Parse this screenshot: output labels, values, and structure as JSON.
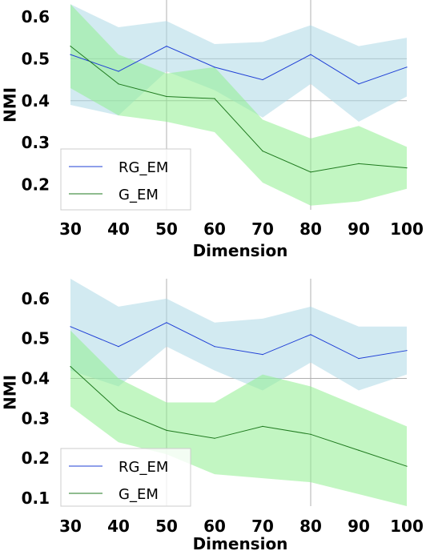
{
  "chart_data": [
    {
      "type": "line",
      "xlabel": "Dimension",
      "ylabel": "NMI",
      "x": [
        30,
        40,
        50,
        60,
        70,
        80,
        90,
        100
      ],
      "xticks": [
        "30",
        "40",
        "50",
        "60",
        "70",
        "80",
        "90",
        "100"
      ],
      "yticks": [
        "0.2",
        "0.3",
        "0.4",
        "0.5",
        "0.6"
      ],
      "yticks_values": [
        0.2,
        0.3,
        0.4,
        0.5,
        0.6
      ],
      "xlim": [
        30,
        100
      ],
      "ylim": [
        0.14,
        0.64
      ],
      "grid": true,
      "legend_position": "lower-left",
      "series": [
        {
          "name": "RG_EM",
          "color": "#1f3fd6",
          "band_color": "#add8e6",
          "values": [
            0.51,
            0.47,
            0.53,
            0.48,
            0.45,
            0.51,
            0.44,
            0.48
          ],
          "upper": [
            0.63,
            0.575,
            0.59,
            0.535,
            0.54,
            0.58,
            0.53,
            0.55
          ],
          "lower": [
            0.39,
            0.365,
            0.47,
            0.425,
            0.36,
            0.44,
            0.35,
            0.41
          ]
        },
        {
          "name": "G_EM",
          "color": "#1f7a1f",
          "band_color": "#90ee90",
          "values": [
            0.53,
            0.44,
            0.41,
            0.405,
            0.28,
            0.23,
            0.25,
            0.24
          ],
          "upper": [
            0.63,
            0.51,
            0.465,
            0.48,
            0.355,
            0.31,
            0.34,
            0.29
          ],
          "lower": [
            0.43,
            0.365,
            0.35,
            0.325,
            0.205,
            0.15,
            0.16,
            0.19
          ]
        }
      ]
    },
    {
      "type": "line",
      "xlabel": "Dimension",
      "ylabel": "NMI",
      "x": [
        30,
        40,
        50,
        60,
        70,
        80,
        90,
        100
      ],
      "xticks": [
        "30",
        "40",
        "50",
        "60",
        "70",
        "80",
        "90",
        "100"
      ],
      "yticks": [
        "0.1",
        "0.2",
        "0.3",
        "0.4",
        "0.5",
        "0.6"
      ],
      "yticks_values": [
        0.1,
        0.2,
        0.3,
        0.4,
        0.5,
        0.6
      ],
      "xlim": [
        30,
        100
      ],
      "ylim": [
        0.08,
        0.65
      ],
      "grid": true,
      "legend_position": "lower-left",
      "series": [
        {
          "name": "RG_EM",
          "color": "#1f3fd6",
          "band_color": "#add8e6",
          "values": [
            0.53,
            0.48,
            0.54,
            0.48,
            0.46,
            0.51,
            0.45,
            0.47
          ],
          "upper": [
            0.65,
            0.58,
            0.6,
            0.54,
            0.55,
            0.58,
            0.53,
            0.53
          ],
          "lower": [
            0.42,
            0.38,
            0.48,
            0.42,
            0.37,
            0.44,
            0.37,
            0.41
          ]
        },
        {
          "name": "G_EM",
          "color": "#1f7a1f",
          "band_color": "#90ee90",
          "values": [
            0.43,
            0.32,
            0.27,
            0.25,
            0.28,
            0.26,
            0.22,
            0.18
          ],
          "upper": [
            0.52,
            0.4,
            0.34,
            0.34,
            0.41,
            0.38,
            0.33,
            0.28
          ],
          "lower": [
            0.33,
            0.24,
            0.21,
            0.16,
            0.15,
            0.14,
            0.11,
            0.08
          ]
        }
      ]
    }
  ]
}
